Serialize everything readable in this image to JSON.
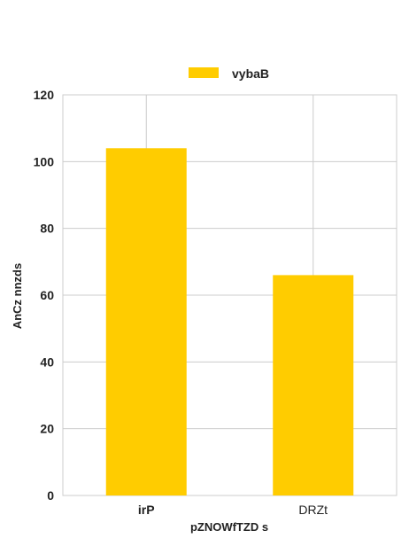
{
  "chart_data": {
    "type": "bar",
    "title": "",
    "categories": [
      "irP",
      "DRZt"
    ],
    "series": [
      {
        "name": "vybaB",
        "values": [
          104,
          66
        ],
        "color": "#ffcc00"
      }
    ],
    "xlabel": "pZNOWfTZD s",
    "ylabel": "AnCz nnzds",
    "ylim": [
      0,
      120
    ],
    "yticks": [
      0,
      20,
      40,
      60,
      80,
      100,
      120
    ],
    "grid": true,
    "legend_position": "top-center"
  }
}
